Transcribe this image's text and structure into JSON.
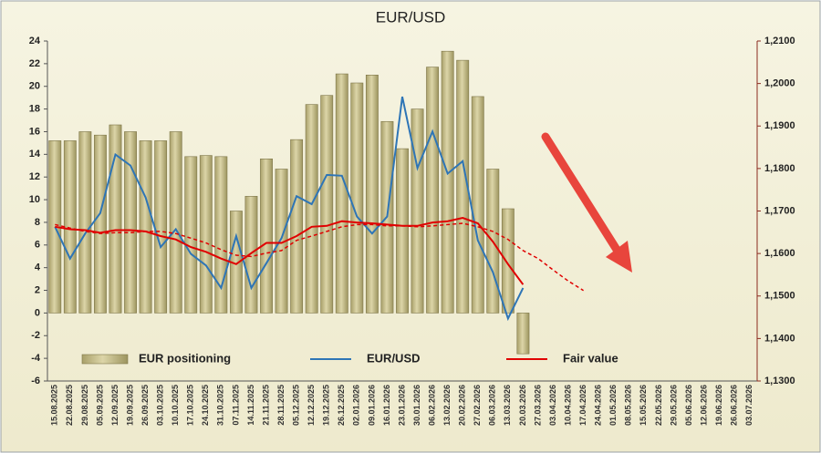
{
  "chart_data": {
    "type": "bar",
    "title": "EUR/USD",
    "categories": [
      "15.08.2025",
      "22.08.2025",
      "29.08.2025",
      "05.09.2025",
      "12.09.2025",
      "19.09.2025",
      "26.09.2025",
      "03.10.2025",
      "10.10.2025",
      "17.10.2025",
      "24.10.2025",
      "31.10.2025",
      "07.11.2025",
      "14.11.2025",
      "21.11.2025",
      "28.11.2025",
      "05.12.2025",
      "12.12.2025",
      "19.12.2025",
      "26.12.2025",
      "02.01.2026",
      "09.01.2026",
      "16.01.2026",
      "23.01.2026",
      "30.01.2026",
      "06.02.2026",
      "13.02.2026",
      "20.02.2026",
      "27.02.2026",
      "06.03.2026",
      "13.03.2026",
      "20.03.2026",
      "27.03.2026",
      "03.04.2026",
      "10.04.2026",
      "17.04.2026",
      "24.04.2026",
      "01.05.2026",
      "08.05.2026",
      "15.05.2026",
      "22.05.2026",
      "29.05.2026",
      "05.06.2026",
      "12.06.2026",
      "19.06.2026",
      "26.06.2026",
      "03.07.2026"
    ],
    "series": [
      {
        "name": "EUR positioning",
        "type": "bar",
        "color": "#c9c18f",
        "values": [
          15.2,
          15.2,
          16,
          15.7,
          16.6,
          16,
          15.2,
          15.2,
          16,
          13.8,
          13.9,
          13.8,
          9,
          10.3,
          13.6,
          12.7,
          15.3,
          18.4,
          19.2,
          21.1,
          20.3,
          21,
          16.9,
          14.5,
          18,
          21.7,
          23.1,
          22.3,
          19.1,
          12.7,
          9.2,
          -3.6,
          null,
          null,
          null,
          null,
          null,
          null,
          null,
          null,
          null,
          null,
          null,
          null,
          null,
          null,
          null
        ]
      },
      {
        "name": "EUR/USD",
        "type": "line",
        "axis": "y2",
        "color": "#2e75b6",
        "values": [
          1.1663,
          1.1588,
          1.1647,
          1.1695,
          1.1833,
          1.1807,
          1.1732,
          1.1615,
          1.1657,
          1.1599,
          1.1572,
          1.1519,
          1.1641,
          1.1519,
          1.1577,
          1.1636,
          1.1735,
          1.1716,
          1.1785,
          1.1783,
          1.1687,
          1.1647,
          1.1687,
          1.1969,
          1.1801,
          1.1887,
          1.1788,
          1.1817,
          1.1631,
          1.1556,
          1.1447,
          1.1519,
          null,
          null,
          null,
          null,
          null,
          null,
          null,
          null,
          null,
          null,
          null,
          null,
          null,
          null,
          null
        ]
      },
      {
        "name": "Fair value",
        "type": "line",
        "axis": "y2",
        "color": "#e00000",
        "values": [
          1.1663,
          1.1657,
          1.1655,
          1.1649,
          1.1655,
          1.1655,
          1.1652,
          1.1641,
          1.1633,
          1.1615,
          1.1604,
          1.1588,
          1.1575,
          1.1601,
          1.1625,
          1.1625,
          1.1641,
          1.1663,
          1.1665,
          1.1676,
          1.1673,
          1.1671,
          1.1668,
          1.1665,
          1.1665,
          1.1673,
          1.1676,
          1.1684,
          1.1671,
          1.1628,
          1.1575,
          1.1527,
          null,
          null,
          null,
          null,
          null,
          null,
          null,
          null,
          null,
          null,
          null,
          null,
          null,
          null,
          null
        ]
      },
      {
        "type": "line",
        "axis": "y2",
        "color": "#e00000",
        "dashed": true,
        "values": [
          1.1668,
          1.166,
          1.1652,
          1.1647,
          1.1649,
          1.1649,
          1.1652,
          1.1652,
          1.1647,
          1.1636,
          1.1625,
          1.1609,
          1.1596,
          1.1593,
          1.1601,
          1.1607,
          1.1631,
          1.1641,
          1.1652,
          1.1663,
          1.1668,
          1.1668,
          1.1665,
          1.1665,
          1.1663,
          1.1665,
          1.1668,
          1.1671,
          1.1663,
          1.1652,
          1.1633,
          1.1607,
          1.1588,
          1.1561,
          1.1535,
          1.1513,
          null,
          null,
          null,
          null,
          null,
          null,
          null,
          null,
          null,
          null,
          null
        ]
      }
    ],
    "ylim": [
      -6,
      24
    ],
    "yticks": [
      -6,
      -4,
      -2,
      0,
      2,
      4,
      6,
      8,
      10,
      12,
      14,
      16,
      18,
      20,
      22,
      24
    ],
    "y2lim": [
      1.13,
      1.21
    ],
    "y2ticks": [
      {
        "value": 1.13,
        "label": "1,1300"
      },
      {
        "value": 1.14,
        "label": "1,1400"
      },
      {
        "value": 1.15,
        "label": "1,1500"
      },
      {
        "value": 1.16,
        "label": "1,1600"
      },
      {
        "value": 1.17,
        "label": "1,1700"
      },
      {
        "value": 1.18,
        "label": "1,1800"
      },
      {
        "value": 1.19,
        "label": "1,1900"
      },
      {
        "value": 1.2,
        "label": "1,2000"
      },
      {
        "value": 1.21,
        "label": "1,2100"
      }
    ],
    "grid": false,
    "legend": "bottom"
  }
}
